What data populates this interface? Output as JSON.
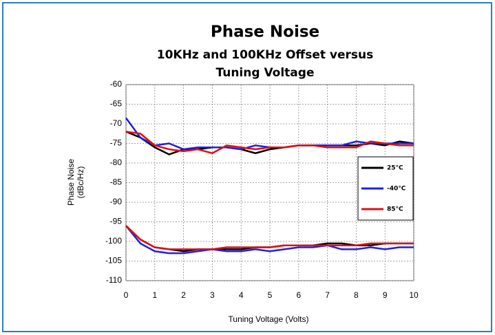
{
  "chart_data": {
    "type": "line",
    "title": "Phase Noise",
    "subtitle": [
      "10KHz and 100KHz Offset versus",
      "Tuning Voltage"
    ],
    "y_label": [
      "Phase Noise",
      "(dBc/Hz)"
    ],
    "x_label": "Tuning Voltage (Volts)",
    "x": [
      0,
      0.5,
      1,
      1.5,
      2,
      2.5,
      3,
      3.5,
      4,
      4.5,
      5,
      5.5,
      6,
      6.5,
      7,
      7.5,
      8,
      8.5,
      9,
      9.5,
      10
    ],
    "series": [
      {
        "name": "25°C",
        "color": "#000000",
        "values": [
          [
            -72,
            -73.5,
            -76,
            -77.8,
            -76.5,
            -76.5,
            -76,
            -76,
            -76.5,
            -77.5,
            -76.5,
            -76,
            -75.5,
            -75.5,
            -75.5,
            -75.5,
            -75.5,
            -75,
            -75.5,
            -74.5,
            -75
          ],
          [
            -96,
            -99.5,
            -101.5,
            -102,
            -102.5,
            -102,
            -102,
            -102,
            -102,
            -101.5,
            -101.5,
            -101,
            -101,
            -101,
            -100.5,
            -100.5,
            -101,
            -101,
            -100.5,
            -100.5,
            -100.5
          ]
        ]
      },
      {
        "name": "-40°C",
        "color": "#1f1fe0",
        "values": [
          [
            -68.5,
            -73.5,
            -75.5,
            -75,
            -76.5,
            -76,
            -76,
            -76,
            -76.5,
            -75.5,
            -76,
            -76,
            -75.5,
            -75.5,
            -75.5,
            -75.5,
            -74.5,
            -75,
            -75,
            -75,
            -75
          ],
          [
            -96,
            -100.5,
            -102.5,
            -103,
            -103,
            -102.5,
            -102,
            -102.5,
            -102.5,
            -102,
            -102.5,
            -102,
            -101.5,
            -101.5,
            -101,
            -102,
            -102,
            -101.5,
            -102,
            -101.5,
            -101.5
          ]
        ]
      },
      {
        "name": "85°C",
        "color": "#e01010",
        "values": [
          [
            -72,
            -72.5,
            -75.5,
            -76.5,
            -77,
            -76.5,
            -77.5,
            -75.5,
            -76,
            -76.5,
            -76,
            -76,
            -75.5,
            -75.5,
            -76,
            -76,
            -76,
            -74.5,
            -75,
            -75.5,
            -75.5
          ],
          [
            -96,
            -99.5,
            -101.5,
            -102,
            -102,
            -102,
            -102,
            -101.5,
            -101.5,
            -101.5,
            -101.5,
            -101,
            -101,
            -101,
            -101,
            -101,
            -101,
            -100.5,
            -100.5,
            -100.5,
            -100.5
          ]
        ]
      }
    ],
    "xlim": [
      0,
      10
    ],
    "xticks": [
      0,
      1,
      2,
      3,
      4,
      5,
      6,
      7,
      8,
      9,
      10
    ],
    "ylim": [
      -110,
      -60
    ],
    "yticks": [
      -60,
      -65,
      -70,
      -75,
      -80,
      -85,
      -90,
      -95,
      -100,
      -105,
      -110
    ],
    "grid": true,
    "legend": "right"
  }
}
